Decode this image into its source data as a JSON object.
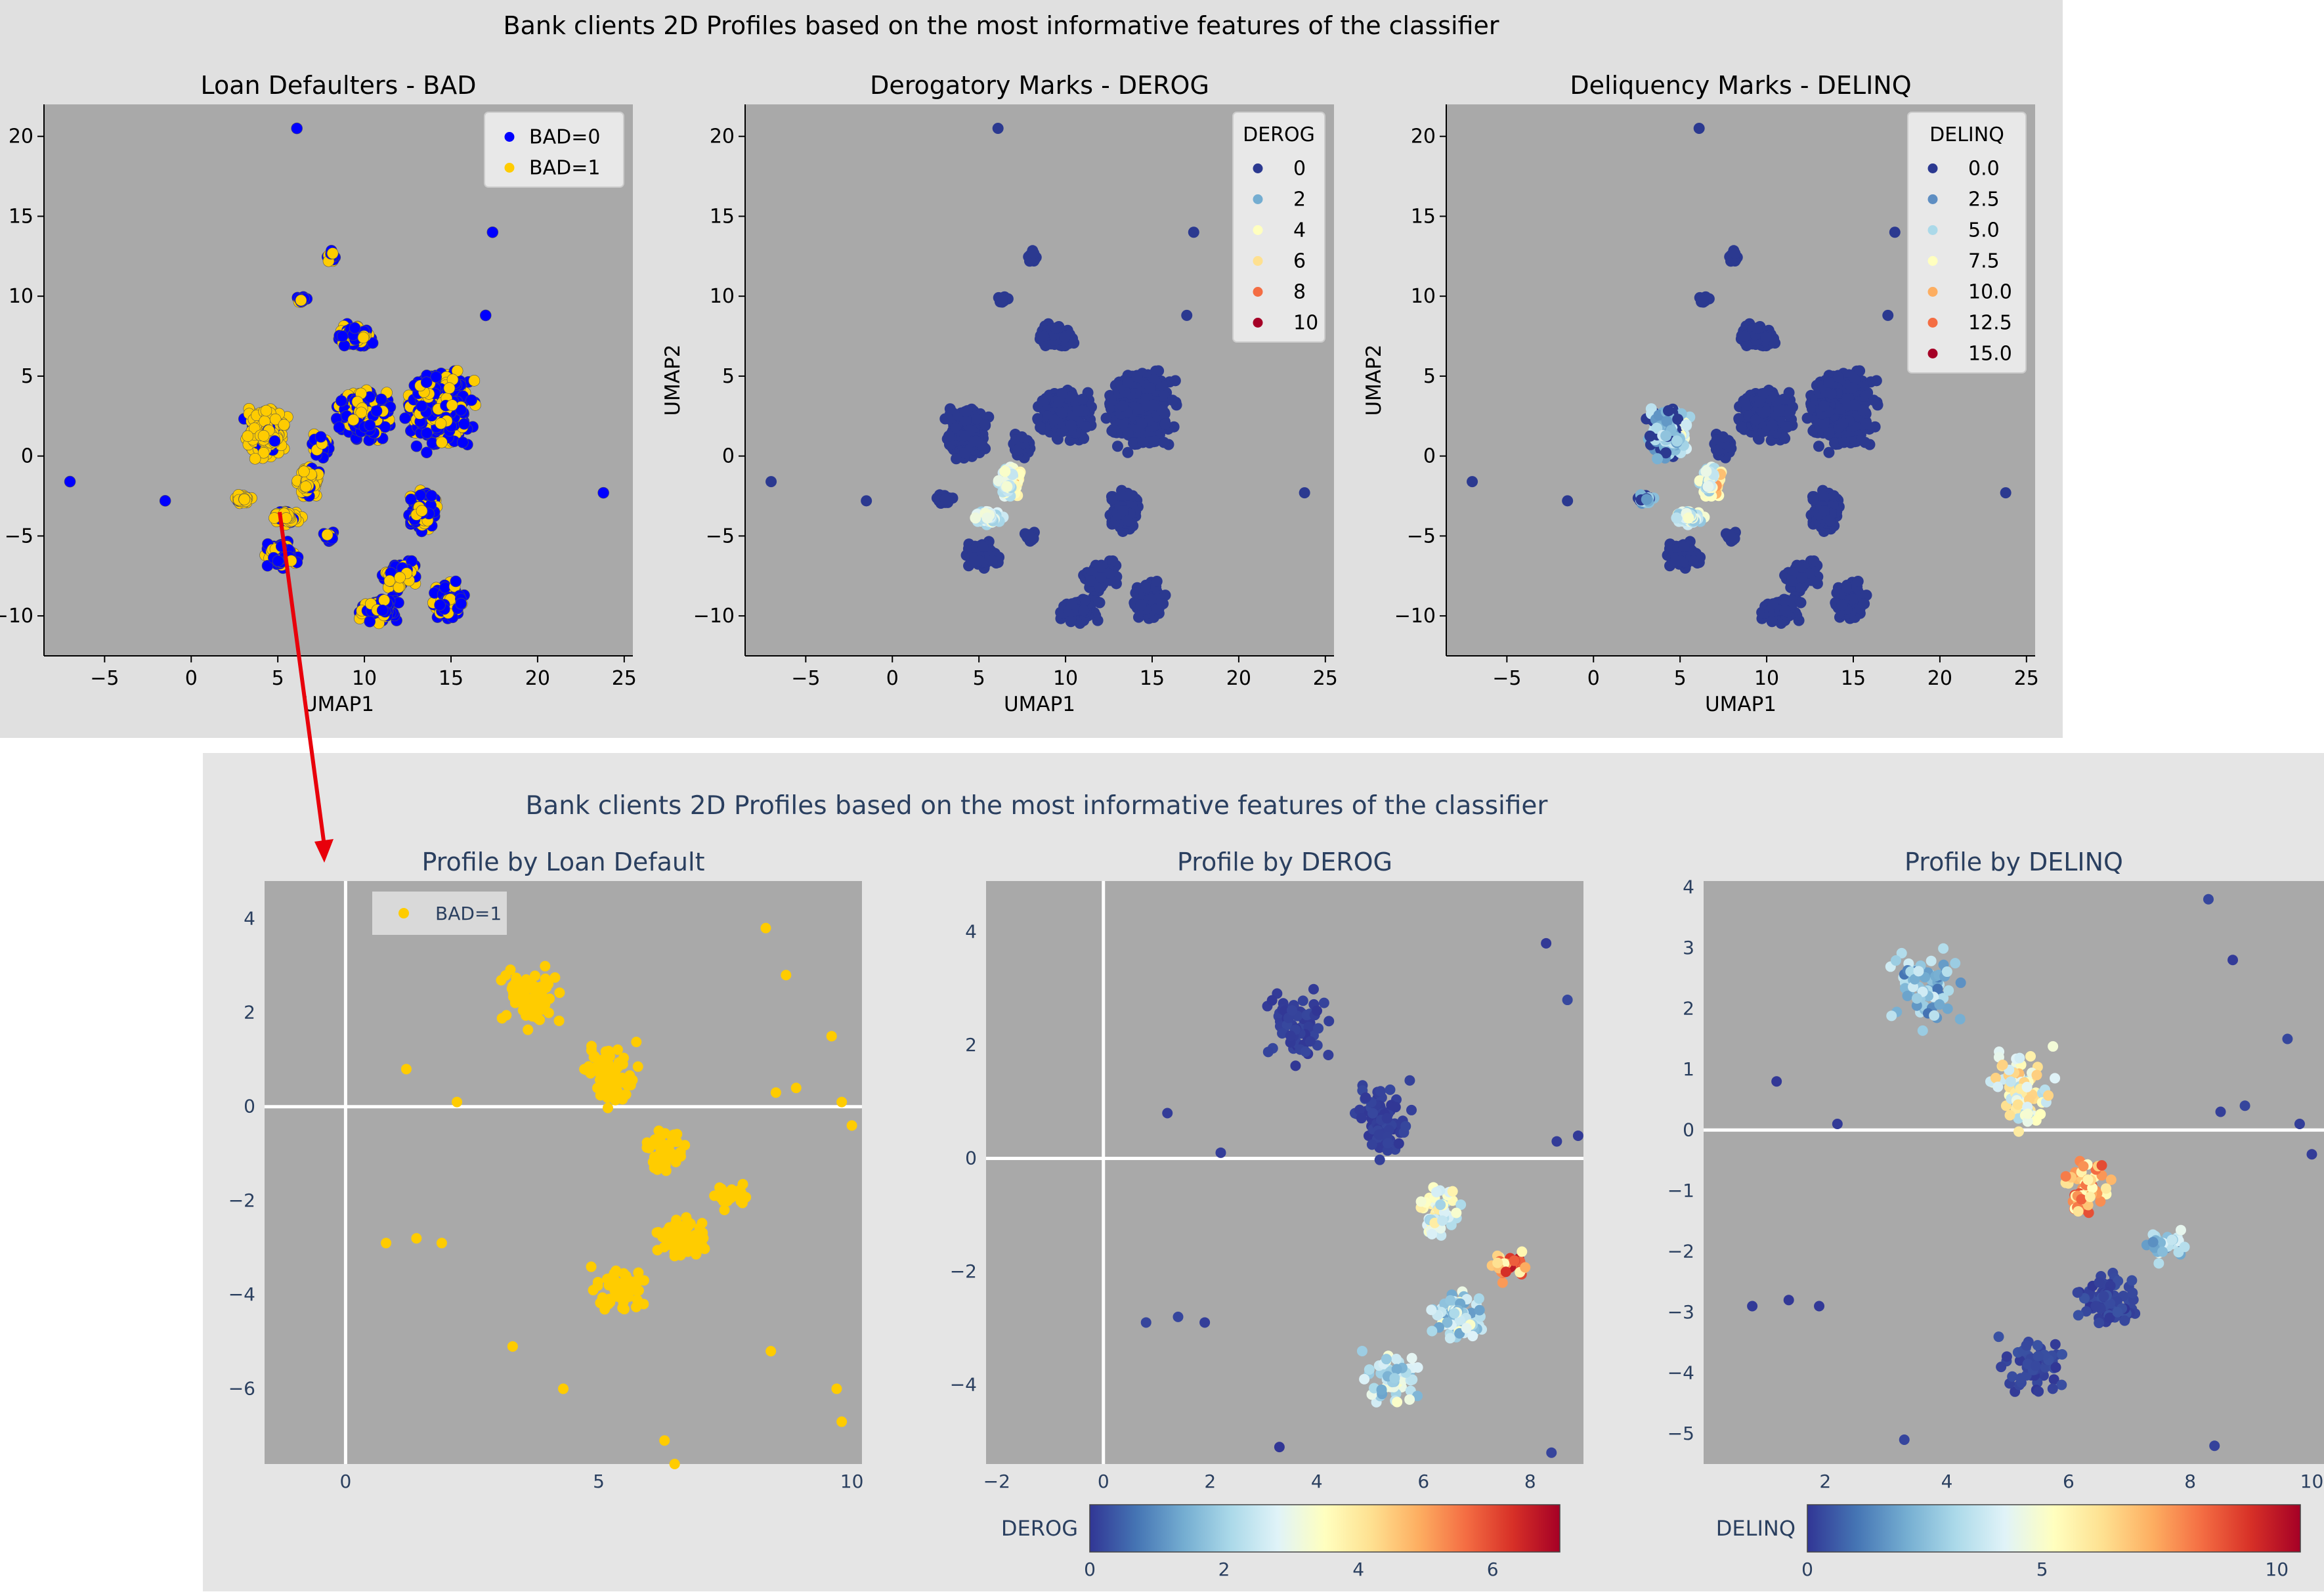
{
  "top_figure": {
    "title": "Bank clients 2D Profiles based on the most informative features of the classifier",
    "background": "#e0e0e0",
    "plot_background": "#a9a9a9"
  },
  "bottom_figure": {
    "title": "Bank clients 2D Profiles based on the most informative features of the classifier",
    "background": "#e5e5e5",
    "plot_background": "#a9a9a9"
  },
  "annotation": {
    "arrow_color": "#e8000b"
  },
  "chart_data": [
    {
      "type": "scatter",
      "title": "Loan Defaulters - BAD",
      "xlabel": "UMAP1",
      "ylabel": "",
      "xlim": [
        -8.5,
        25.5
      ],
      "ylim": [
        -12.5,
        22
      ],
      "xticks": [
        "−5",
        "0",
        "5",
        "10",
        "15",
        "20",
        "25"
      ],
      "yticks": [
        "−10",
        "−5",
        "0",
        "5",
        "10",
        "15",
        "20"
      ],
      "grid": false,
      "legend_position": "top-right",
      "series": [
        {
          "name": "BAD=0",
          "color": "#0000ff"
        },
        {
          "name": "BAD=1",
          "color": "#ffcc00"
        }
      ]
    },
    {
      "type": "scatter",
      "title": "Derogatory Marks - DEROG",
      "xlabel": "UMAP1",
      "ylabel": "UMAP2",
      "xlim": [
        -8.5,
        25.5
      ],
      "ylim": [
        -12.5,
        22
      ],
      "xticks": [
        "−5",
        "0",
        "5",
        "10",
        "15",
        "20",
        "25"
      ],
      "yticks": [
        "−10",
        "−5",
        "0",
        "5",
        "10",
        "15",
        "20"
      ],
      "grid": false,
      "legend_position": "top-right",
      "legend_title": "DEROG",
      "legend_entries": [
        {
          "label": "0",
          "color": "#2b3990"
        },
        {
          "label": "2",
          "color": "#74add1"
        },
        {
          "label": "4",
          "color": "#ffffbf"
        },
        {
          "label": "6",
          "color": "#fee090"
        },
        {
          "label": "8",
          "color": "#f46d43"
        },
        {
          "label": "10",
          "color": "#a50026"
        }
      ]
    },
    {
      "type": "scatter",
      "title": "Deliquency Marks - DELINQ",
      "xlabel": "UMAP1",
      "ylabel": "UMAP2",
      "xlim": [
        -8.5,
        25.5
      ],
      "ylim": [
        -12.5,
        22
      ],
      "xticks": [
        "−5",
        "0",
        "5",
        "10",
        "15",
        "20",
        "25"
      ],
      "yticks": [
        "−10",
        "−5",
        "0",
        "5",
        "10",
        "15",
        "20"
      ],
      "grid": false,
      "legend_position": "top-right",
      "legend_title": "DELINQ",
      "legend_entries": [
        {
          "label": "0.0",
          "color": "#2b3990"
        },
        {
          "label": "2.5",
          "color": "#5e8ec2"
        },
        {
          "label": "5.0",
          "color": "#abd9e9"
        },
        {
          "label": "7.5",
          "color": "#ffffbf"
        },
        {
          "label": "10.0",
          "color": "#fdae61"
        },
        {
          "label": "12.5",
          "color": "#f46d43"
        },
        {
          "label": "15.0",
          "color": "#a50026"
        }
      ]
    },
    {
      "type": "scatter",
      "title": "Profile by Loan Default",
      "xlabel": "",
      "ylabel": "",
      "xlim": [
        -1.6,
        10.2
      ],
      "ylim": [
        -7.6,
        4.8
      ],
      "xticks": [
        "0",
        "5",
        "10"
      ],
      "yticks": [
        "4",
        "2",
        "0",
        "−2",
        "−4",
        "−6"
      ],
      "zero_lines": true,
      "legend_position": "top-left",
      "series": [
        {
          "name": "BAD=1",
          "color": "#ffcc00"
        }
      ]
    },
    {
      "type": "scatter",
      "title": "Profile by DEROG",
      "xlabel": "",
      "ylabel": "",
      "xlim": [
        -2.2,
        9.0
      ],
      "ylim": [
        -5.4,
        4.9
      ],
      "xticks": [
        "−2",
        "0",
        "2",
        "4",
        "6",
        "8"
      ],
      "yticks": [
        "4",
        "2",
        "0",
        "−2",
        "−4"
      ],
      "zero_lines": true,
      "colorbar": {
        "title": "DEROG",
        "ticks": [
          "0",
          "2",
          "4",
          "6"
        ],
        "range": [
          0,
          7
        ]
      }
    },
    {
      "type": "scatter",
      "title": "Profile by DELINQ",
      "xlabel": "",
      "ylabel": "",
      "xlim": [
        0.0,
        10.2
      ],
      "ylim": [
        -5.5,
        4.1
      ],
      "xticks": [
        "2",
        "4",
        "6",
        "8",
        "10"
      ],
      "yticks": [
        "4",
        "3",
        "2",
        "1",
        "0",
        "−1",
        "−2",
        "−3",
        "−4",
        "−5"
      ],
      "zero_lines": true,
      "colorbar": {
        "title": "DELINQ",
        "ticks": [
          "0",
          "5",
          "10"
        ],
        "range": [
          0,
          10.5
        ]
      }
    }
  ]
}
